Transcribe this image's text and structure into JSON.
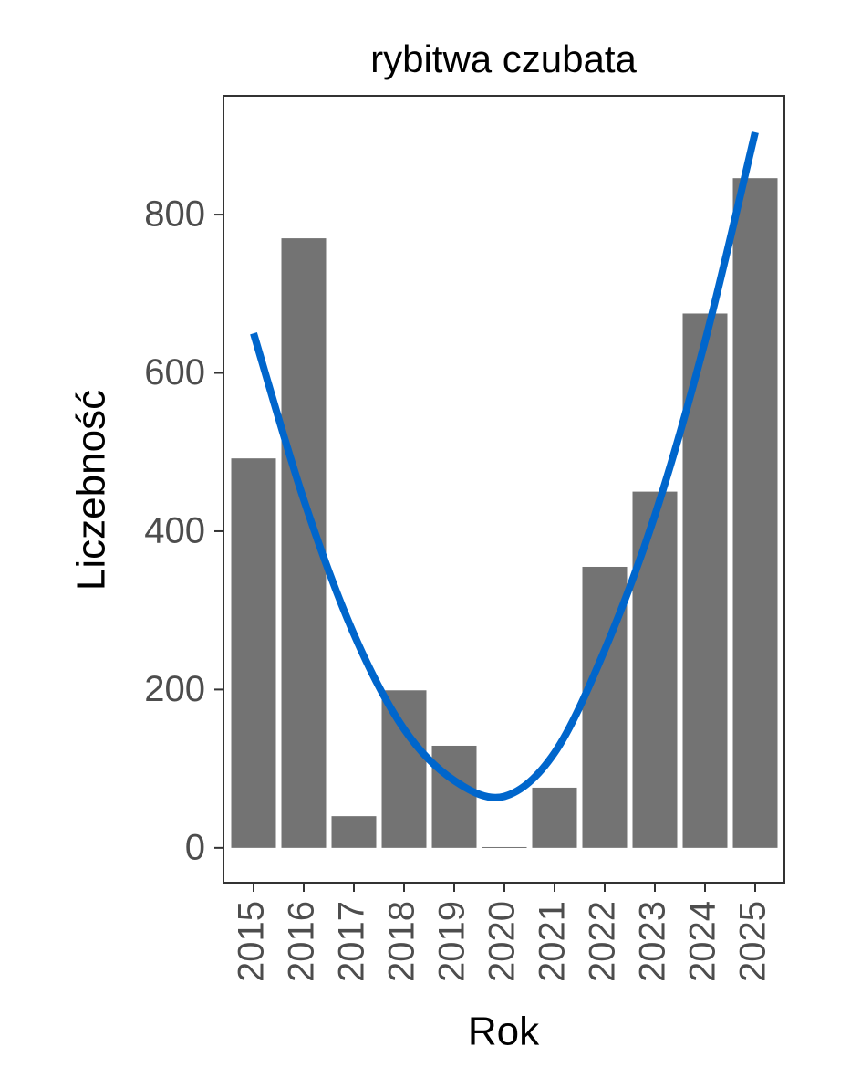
{
  "chart_data": {
    "type": "bar",
    "title": "rybitwa czubata",
    "x_label": "Rok",
    "y_label": "Liczebność",
    "categories": [
      "2015",
      "2016",
      "2017",
      "2018",
      "2019",
      "2020",
      "2021",
      "2022",
      "2023",
      "2024",
      "2025"
    ],
    "series": [
      {
        "name": "Liczebność",
        "type": "bar",
        "color": "#737373",
        "values": [
          492,
          770,
          40,
          199,
          129,
          1,
          76,
          355,
          450,
          675,
          846
        ]
      },
      {
        "name": "trend",
        "type": "line",
        "color": "#0066cc",
        "values": [
          650,
          440,
          270,
          150,
          85,
          65,
          120,
          250,
          420,
          640,
          904
        ]
      }
    ],
    "ylim": [
      -44,
      950
    ],
    "yticks": [
      0,
      200,
      400,
      600,
      800
    ]
  }
}
